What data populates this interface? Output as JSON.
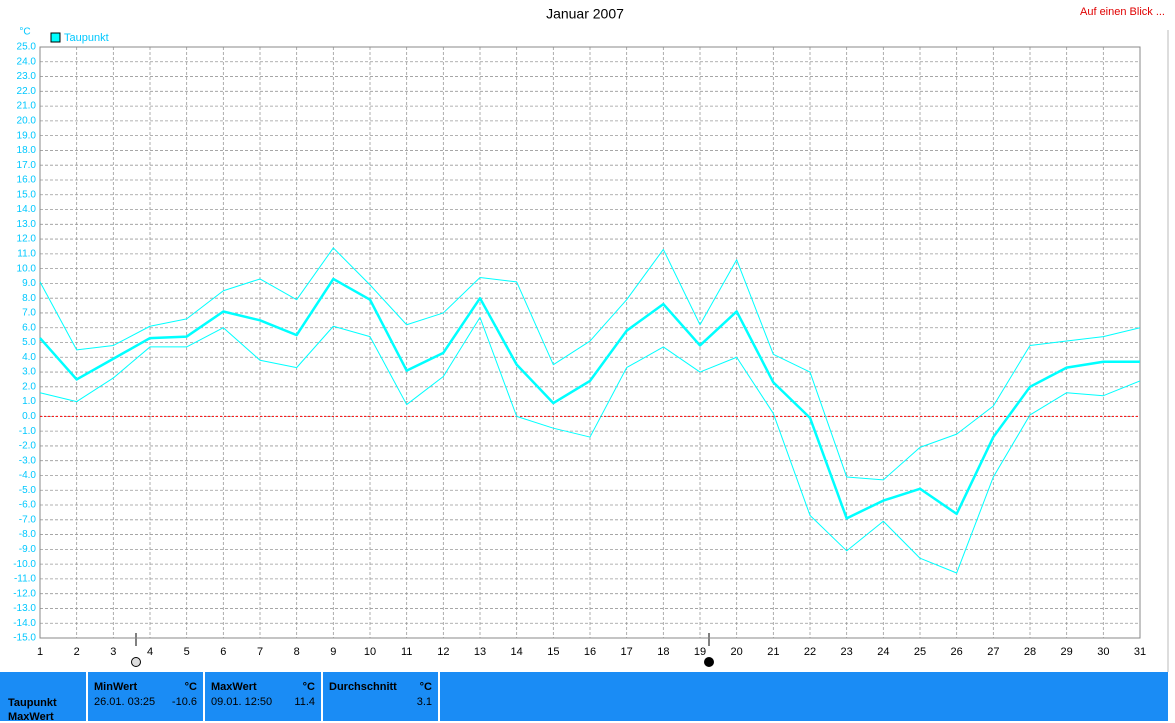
{
  "header": {
    "link": "Auf einen Blick ..."
  },
  "chart_data": {
    "type": "line",
    "title": "Januar 2007",
    "y_label": "°C",
    "x": [
      1,
      2,
      3,
      4,
      5,
      6,
      7,
      8,
      9,
      10,
      11,
      12,
      13,
      14,
      15,
      16,
      17,
      18,
      19,
      20,
      21,
      22,
      23,
      24,
      25,
      26,
      27,
      28,
      29,
      30,
      31
    ],
    "xlim": [
      1,
      31
    ],
    "xticks": [
      1,
      2,
      3,
      4,
      5,
      6,
      7,
      8,
      9,
      10,
      11,
      12,
      13,
      14,
      15,
      16,
      17,
      18,
      19,
      20,
      21,
      22,
      23,
      24,
      25,
      26,
      27,
      28,
      29,
      30,
      31
    ],
    "ylim": [
      -15,
      25
    ],
    "yticks": [
      {
        "value": -15,
        "label": "-15.0"
      },
      {
        "value": -14,
        "label": "-14.0"
      },
      {
        "value": -13,
        "label": "-13.0"
      },
      {
        "value": -12,
        "label": "-12.0"
      },
      {
        "value": -11,
        "label": "-11.0"
      },
      {
        "value": -10,
        "label": "-10.0"
      },
      {
        "value": -9,
        "label": "-9.0"
      },
      {
        "value": -8,
        "label": "-8.0"
      },
      {
        "value": -7,
        "label": "-7.0"
      },
      {
        "value": -6,
        "label": "-6.0"
      },
      {
        "value": -5,
        "label": "-5.0"
      },
      {
        "value": -4,
        "label": "-4.0"
      },
      {
        "value": -3,
        "label": "-3.0"
      },
      {
        "value": -2,
        "label": "-2.0"
      },
      {
        "value": -1,
        "label": "-1.0"
      },
      {
        "value": 0,
        "label": "0.0"
      },
      {
        "value": 1,
        "label": "1.0"
      },
      {
        "value": 2,
        "label": "2.0"
      },
      {
        "value": 3,
        "label": "3.0"
      },
      {
        "value": 4,
        "label": "4.0"
      },
      {
        "value": 5,
        "label": "5.0"
      },
      {
        "value": 6,
        "label": "6.0"
      },
      {
        "value": 7,
        "label": "7.0"
      },
      {
        "value": 8,
        "label": "8.0"
      },
      {
        "value": 9,
        "label": "9.0"
      },
      {
        "value": 10,
        "label": "10.0"
      },
      {
        "value": 11,
        "label": "11.0"
      },
      {
        "value": 12,
        "label": "12.0"
      },
      {
        "value": 13,
        "label": "13.0"
      },
      {
        "value": 14,
        "label": "14.0"
      },
      {
        "value": 15,
        "label": "15.0"
      },
      {
        "value": 16,
        "label": "16.0"
      },
      {
        "value": 17,
        "label": "17.0"
      },
      {
        "value": 18,
        "label": "18.0"
      },
      {
        "value": 19,
        "label": "19.0"
      },
      {
        "value": 20,
        "label": "20.0"
      },
      {
        "value": 21,
        "label": "21.0"
      },
      {
        "value": 22,
        "label": "22.0"
      },
      {
        "value": 23,
        "label": "23.0"
      },
      {
        "value": 24,
        "label": "24.0"
      },
      {
        "value": 25,
        "label": "25.0"
      }
    ],
    "grid": true,
    "hline": {
      "value": 0,
      "color": "#ff0000"
    },
    "series": [
      {
        "name": "Taupunkt",
        "color": "#00ffff",
        "values": [
          5.3,
          2.5,
          3.9,
          5.3,
          5.4,
          7.1,
          6.5,
          5.5,
          9.3,
          7.9,
          3.1,
          4.3,
          8.0,
          3.5,
          0.9,
          2.4,
          5.8,
          7.6,
          4.8,
          7.1,
          2.3,
          -0.1,
          -6.9,
          -5.7,
          -4.9,
          -6.6,
          -1.4,
          2.0,
          3.3,
          3.7,
          3.7
        ],
        "max": [
          9.1,
          4.5,
          4.8,
          6.1,
          6.6,
          8.5,
          9.3,
          7.9,
          11.4,
          8.9,
          6.2,
          7.0,
          9.4,
          9.1,
          3.5,
          5.1,
          7.9,
          11.3,
          6.2,
          10.6,
          4.2,
          3.0,
          -4.1,
          -4.3,
          -2.1,
          -1.2,
          0.7,
          4.8,
          5.1,
          5.4,
          6.0
        ],
        "min": [
          1.6,
          1.0,
          2.6,
          4.7,
          4.7,
          6.0,
          3.8,
          3.3,
          6.1,
          5.4,
          0.8,
          2.7,
          6.7,
          0.0,
          -0.8,
          -1.4,
          3.3,
          4.7,
          3.0,
          4.0,
          0.2,
          -6.7,
          -9.1,
          -7.1,
          -9.6,
          -10.6,
          -4.1,
          0.1,
          1.6,
          1.4,
          2.4
        ]
      }
    ]
  },
  "summary": {
    "row_labels": [
      "Taupunkt",
      "MaxWert"
    ],
    "columns": [
      {
        "title": "MinWert",
        "unit": "°C",
        "time": "26.01.  03:25",
        "value": "-10.6"
      },
      {
        "title": "MaxWert",
        "unit": "°C",
        "time": "09.01.  12:50",
        "value": "11.4"
      },
      {
        "title": "Durchschnitt",
        "unit": "°C",
        "value": "3.1"
      }
    ]
  }
}
